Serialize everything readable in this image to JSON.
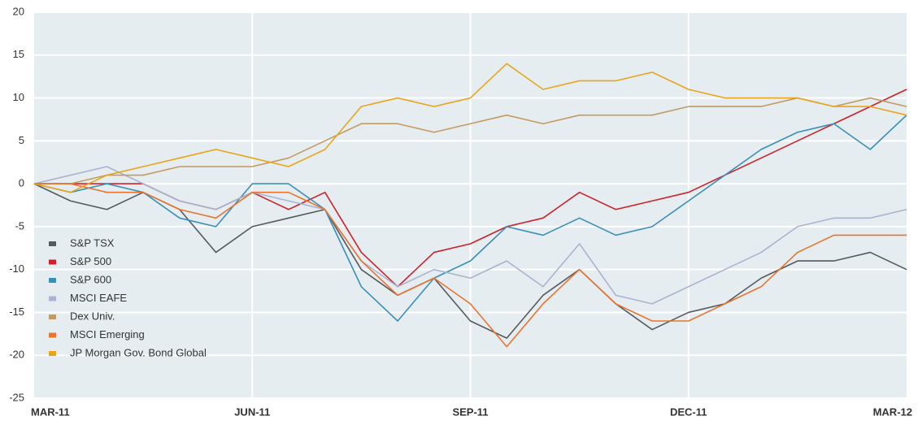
{
  "chart_data": {
    "type": "line",
    "categories": [
      "MAR-11",
      null,
      null,
      null,
      null,
      null,
      "JUN-11",
      null,
      null,
      null,
      null,
      null,
      "SEP-11",
      null,
      null,
      null,
      null,
      null,
      "DEC-11",
      null,
      null,
      null,
      null,
      null,
      "MAR-12"
    ],
    "ylim": [
      -25,
      20
    ],
    "yticks": [
      -25,
      -20,
      -15,
      -10,
      -5,
      0,
      5,
      10,
      15,
      20
    ],
    "grid": true,
    "legend": "lower left",
    "series": [
      {
        "name": "S&P TSX",
        "color": "#555a5e",
        "values": [
          0,
          -2,
          -3,
          -1,
          -3,
          -8,
          -5,
          -4,
          -3,
          -10,
          -13,
          -11,
          -16,
          -18,
          -13,
          -10,
          -14,
          -17,
          -15,
          -14,
          -11,
          -9,
          -9,
          -8,
          -10
        ]
      },
      {
        "name": "S&P 500",
        "color": "#cc2229",
        "values": [
          0,
          0,
          0,
          0,
          -2,
          -3,
          -1,
          -3,
          -1,
          -8,
          -12,
          -8,
          -7,
          -5,
          -4,
          -1,
          -3,
          -2,
          -1,
          1,
          3,
          5,
          7,
          9,
          11
        ]
      },
      {
        "name": "S&P 600",
        "color": "#3a8fb7",
        "values": [
          0,
          -1,
          0,
          -1,
          -4,
          -5,
          0,
          0,
          -3,
          -12,
          -16,
          -11,
          -9,
          -5,
          -6,
          -4,
          -6,
          -5,
          -2,
          1,
          4,
          6,
          7,
          4,
          8
        ]
      },
      {
        "name": "MSCI EAFE",
        "color": "#a8b4d0",
        "values": [
          0,
          1,
          2,
          0,
          -2,
          -3,
          -1,
          -2,
          -3,
          -9,
          -12,
          -10,
          -11,
          -9,
          -12,
          -7,
          -13,
          -14,
          -12,
          -10,
          -8,
          -5,
          -4,
          -4,
          -3
        ]
      },
      {
        "name": "Dex Univ.",
        "color": "#c49a63",
        "values": [
          0,
          0,
          1,
          1,
          2,
          2,
          2,
          3,
          5,
          7,
          7,
          6,
          7,
          8,
          7,
          8,
          8,
          8,
          9,
          9,
          9,
          10,
          9,
          10,
          9
        ]
      },
      {
        "name": "MSCI Emerging",
        "color": "#e8742f",
        "values": [
          0,
          0,
          -1,
          -1,
          -3,
          -4,
          -1,
          -1,
          -3,
          -9,
          -13,
          -11,
          -14,
          -19,
          -14,
          -10,
          -14,
          -16,
          -16,
          -14,
          -12,
          -8,
          -6,
          -6,
          -6
        ]
      },
      {
        "name": "JP Morgan Gov. Bond Global",
        "color": "#e8a51c",
        "values": [
          0,
          -1,
          1,
          2,
          3,
          4,
          3,
          2,
          4,
          9,
          10,
          9,
          10,
          14,
          11,
          12,
          12,
          13,
          11,
          10,
          10,
          10,
          9,
          9,
          8
        ]
      }
    ]
  }
}
